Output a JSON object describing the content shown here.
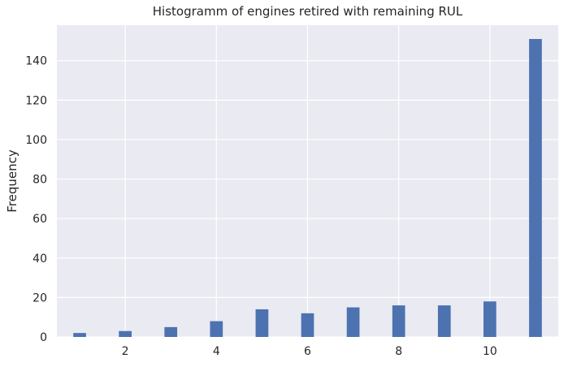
{
  "chart_data": {
    "type": "bar",
    "title": "Histogramm of engines retired with remaining RUL",
    "xlabel": "",
    "ylabel": "Frequency",
    "x": [
      1,
      2,
      3,
      4,
      5,
      6,
      7,
      8,
      9,
      10,
      11
    ],
    "values": [
      2,
      3,
      5,
      8,
      14,
      12,
      15,
      16,
      16,
      18,
      151
    ],
    "xlim": [
      0.5,
      11.5
    ],
    "ylim": [
      0,
      158
    ],
    "xticks": [
      2,
      4,
      6,
      8,
      10
    ],
    "yticks": [
      0,
      20,
      40,
      60,
      80,
      100,
      120,
      140
    ],
    "bar_width": 0.28,
    "grid": true,
    "colors": {
      "background": "#eaeaf2",
      "bar": "#4c72b0",
      "grid": "#ffffff"
    }
  }
}
